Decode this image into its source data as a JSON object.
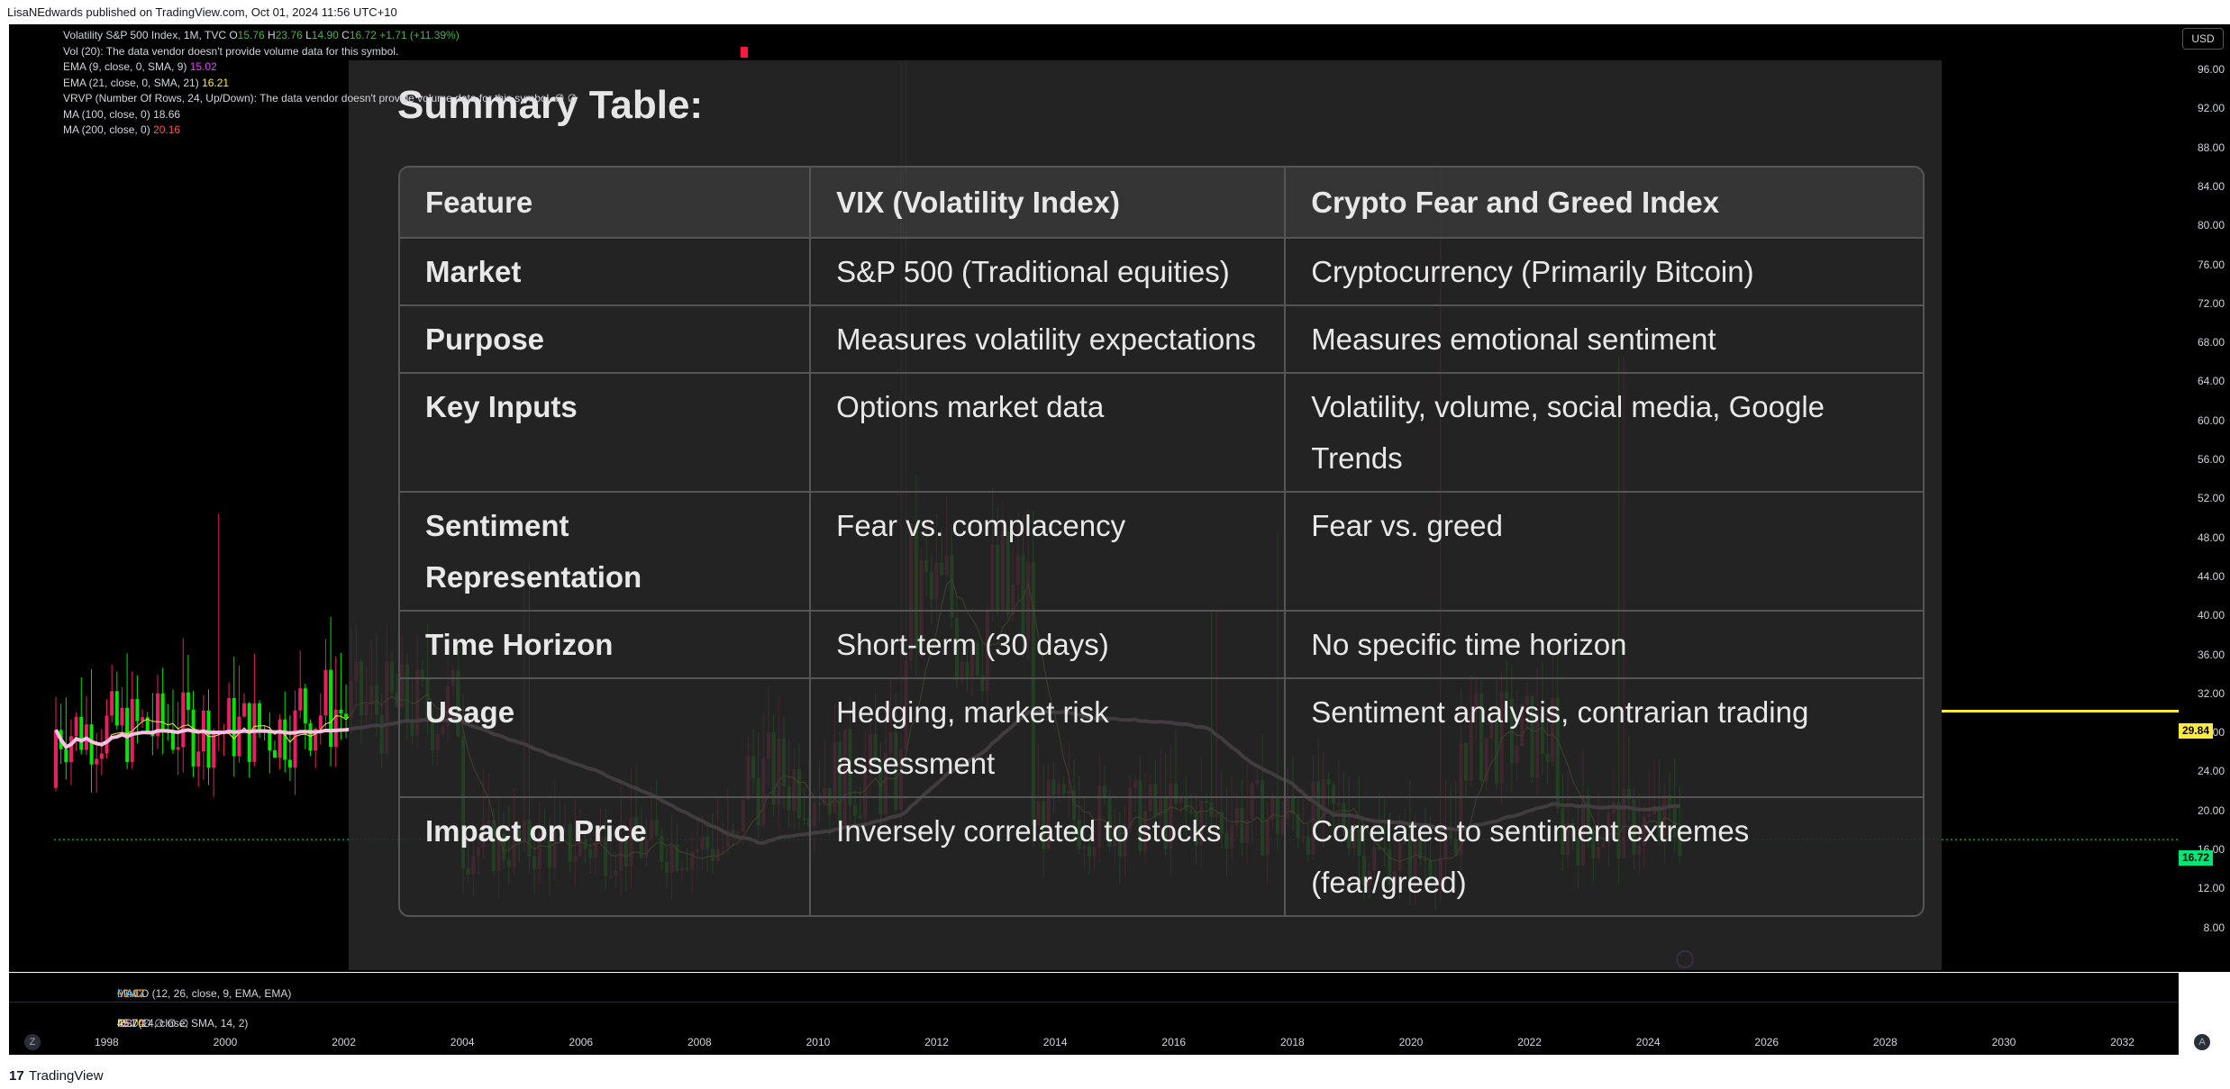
{
  "header": {
    "published": "LisaNEdwards published on TradingView.com, Oct 01, 2024 11:56 UTC+10"
  },
  "legend": {
    "symbol": "Volatility S&P 500 Index, 1M, TVC",
    "o_label": "O",
    "o": "15.76",
    "h_label": "H",
    "h": "23.76",
    "l_label": "L",
    "l": "14.90",
    "c_label": "C",
    "c": "16.72",
    "change": "+1.71 (+11.39%)",
    "vol": "Vol (20): The data vendor doesn't provide volume data for this symbol.",
    "ema9": "EMA (9, close, 0, SMA, 9)",
    "ema9_val": "15.02",
    "ema21": "EMA (21, close, 0, SMA, 21)",
    "ema21_val": "16.21",
    "vrvp": "VRVP (Number Of Rows, 24, Up/Down): The data vendor doesn't provide volume data for this symbol.",
    "vrvp_tail": "∅ ∅",
    "ma100": "MA (100, close, 0)",
    "ma100_val": "18.66",
    "ma200": "MA (200, close, 0)",
    "ma200_val": "20.16"
  },
  "price_scale": {
    "currency": "USD",
    "ticks": [
      "96.00",
      "92.00",
      "88.00",
      "84.00",
      "80.00",
      "76.00",
      "72.00",
      "68.00",
      "64.00",
      "60.00",
      "56.00",
      "52.00",
      "48.00",
      "44.00",
      "40.00",
      "36.00",
      "32.00",
      "28.00",
      "24.00",
      "20.00",
      "16.00",
      "12.00",
      "8.00"
    ],
    "tag_hline": "29.84",
    "tag_last": "16.72",
    "hline_color": "#ffeb3b",
    "last_color": "#00e676"
  },
  "summary": {
    "title": "Summary Table:",
    "columns": [
      "Feature",
      "VIX (Volatility Index)",
      "Crypto Fear and Greed Index"
    ],
    "rows": [
      [
        "Market",
        "S&P 500 (Traditional equities)",
        "Cryptocurrency (Primarily Bitcoin)"
      ],
      [
        "Purpose",
        "Measures volatility expectations",
        "Measures emotional sentiment"
      ],
      [
        "Key Inputs",
        "Options market data",
        "Volatility, volume, social media, Google Trends"
      ],
      [
        "Sentiment Representation",
        "Fear vs. complacency",
        "Fear vs. greed"
      ],
      [
        "Time Horizon",
        "Short-term (30 days)",
        "No specific time horizon"
      ],
      [
        "Usage",
        "Hedging, market risk assessment",
        "Sentiment analysis, contrarian trading"
      ],
      [
        "Impact on Price",
        "Inversely correlated to stocks",
        "Correlates to sentiment extremes (fear/greed)"
      ]
    ]
  },
  "panes": {
    "macd": "MACD (12, 26, close, 9, EMA, EMA)",
    "macd_v1": "0.44",
    "macd_v2": "−1.63",
    "macd_v3": "−2.07",
    "rsi": "RSI (14, close, SMA, 14, 2)",
    "rsi_v1": "49.74",
    "rsi_v2": "45.70",
    "rsi_tail": "∅ ∅ ∅ ∅ ∅ ∅"
  },
  "xaxis": {
    "years": [
      "1998",
      "2000",
      "2002",
      "2004",
      "2006",
      "2008",
      "2010",
      "2012",
      "2014",
      "2016",
      "2018",
      "2020",
      "2022",
      "2024",
      "2026",
      "2028",
      "2030",
      "2032"
    ]
  },
  "footer": {
    "logo": "17",
    "brand": "TradingView"
  },
  "buttons": {
    "z": "Z",
    "a": "A"
  },
  "chart_data": {
    "type": "candlestick",
    "series": [
      {
        "name": "Volatility S&P 500 Index"
      }
    ],
    "ylim": [
      8,
      96
    ],
    "x_range": [
      "1998",
      "2032"
    ],
    "last": 16.72,
    "hline": 29.84,
    "notable_highs": [
      {
        "x": "2008",
        "y": 96.4
      },
      {
        "x": "2020",
        "y": 85.5
      },
      {
        "x": "2024",
        "y": 65.7
      }
    ]
  }
}
